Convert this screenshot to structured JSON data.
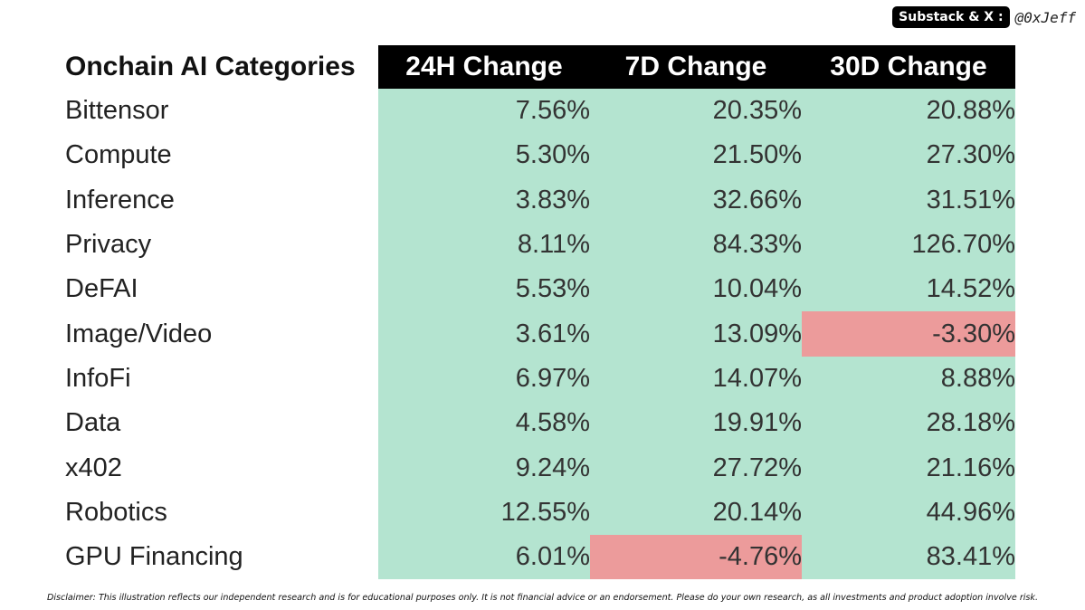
{
  "branding": {
    "pill_label": "Substack & X :",
    "handle": "@0xJeff"
  },
  "chart_data": {
    "type": "table",
    "title": "",
    "colors": {
      "header_bg": "#000000",
      "header_text": "#ffffff",
      "positive_bg": "#b4e4d0",
      "negative_bg": "#ec9b9b"
    },
    "columns": [
      "Onchain AI Categories",
      "24H Change",
      "7D Change",
      "30D Change"
    ],
    "rows": [
      {
        "category": "Bittensor",
        "values": [
          "7.56%",
          "20.35%",
          "20.88%"
        ]
      },
      {
        "category": "Compute",
        "values": [
          "5.30%",
          "21.50%",
          "27.30%"
        ]
      },
      {
        "category": "Inference",
        "values": [
          "3.83%",
          "32.66%",
          "31.51%"
        ]
      },
      {
        "category": "Privacy",
        "values": [
          "8.11%",
          "84.33%",
          "126.70%"
        ]
      },
      {
        "category": "DeFAI",
        "values": [
          "5.53%",
          "10.04%",
          "14.52%"
        ]
      },
      {
        "category": "Image/Video",
        "values": [
          "3.61%",
          "13.09%",
          "-3.30%"
        ]
      },
      {
        "category": "InfoFi",
        "values": [
          "6.97%",
          "14.07%",
          "8.88%"
        ]
      },
      {
        "category": "Data",
        "values": [
          "4.58%",
          "19.91%",
          "28.18%"
        ]
      },
      {
        "category": "x402",
        "values": [
          "9.24%",
          "27.72%",
          "21.16%"
        ]
      },
      {
        "category": "Robotics",
        "values": [
          "12.55%",
          "20.14%",
          "44.96%"
        ]
      },
      {
        "category": "GPU Financing",
        "values": [
          "6.01%",
          "-4.76%",
          "83.41%"
        ]
      }
    ]
  },
  "disclaimer": "Disclaimer: This illustration reflects our independent research and is for educational purposes only. It is not financial advice or an endorsement. Please do your own research, as all investments and product adoption involve risk."
}
